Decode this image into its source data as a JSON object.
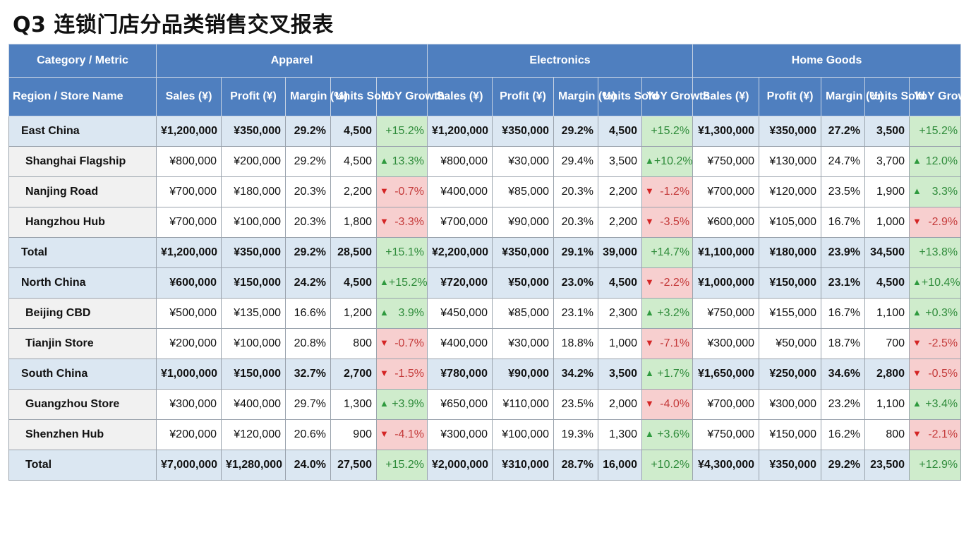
{
  "title": "Q3 连锁门店分品类销售交叉报表",
  "header": {
    "corner_top": "Category / Metric",
    "corner_bottom": "Region / Store Name",
    "categories": [
      "Apparel",
      "Electronics",
      "Home Goods"
    ],
    "metrics": [
      "Sales (¥)",
      "Profit (¥)",
      "Margin (%)",
      "Units Sold",
      "YoY Growth"
    ]
  },
  "colors": {
    "header": "#4f7fbf",
    "up": "#2e8b3a",
    "down": "#c43a3a",
    "up_bg": "#cfeccc",
    "down_bg": "#f7cfcf"
  },
  "rows": [
    {
      "label": "East China",
      "type": "region",
      "cells": [
        [
          "¥1,200,000",
          "¥350,000",
          "29.2%",
          "4,500",
          {
            "arrow": "",
            "value": "+15.2%",
            "tone": "up"
          }
        ],
        [
          "¥1,200,000",
          "¥350,000",
          "29.2%",
          "4,500",
          {
            "arrow": "",
            "value": "+15.2%",
            "tone": "up"
          }
        ],
        [
          "¥1,300,000",
          "¥350,000",
          "27.2%",
          "3,500",
          {
            "arrow": "",
            "value": "+15.2%",
            "tone": "up"
          }
        ]
      ]
    },
    {
      "label": "Shanghai Flagship",
      "type": "store",
      "cells": [
        [
          "¥800,000",
          "¥200,000",
          "29.2%",
          "4,500",
          {
            "arrow": "▲",
            "value": "13.3%",
            "tone": "up"
          }
        ],
        [
          "¥800,000",
          "¥30,000",
          "29.4%",
          "3,500",
          {
            "arrow": "▲",
            "value": "+10.2%",
            "tone": "up"
          }
        ],
        [
          "¥750,000",
          "¥130,000",
          "24.7%",
          "3,700",
          {
            "arrow": "▲",
            "value": "12.0%",
            "tone": "up"
          }
        ]
      ]
    },
    {
      "label": "Nanjing Road",
      "type": "store",
      "cells": [
        [
          "¥700,000",
          "¥180,000",
          "20.3%",
          "2,200",
          {
            "arrow": "▼",
            "value": "-0.7%",
            "tone": "down"
          }
        ],
        [
          "¥400,000",
          "¥85,000",
          "20.3%",
          "2,200",
          {
            "arrow": "▼",
            "value": "-1.2%",
            "tone": "down"
          }
        ],
        [
          "¥700,000",
          "¥120,000",
          "23.5%",
          "1,900",
          {
            "arrow": "▲",
            "value": "3.3%",
            "tone": "up"
          }
        ]
      ]
    },
    {
      "label": "Hangzhou Hub",
      "type": "store",
      "cells": [
        [
          "¥700,000",
          "¥100,000",
          "20.3%",
          "1,800",
          {
            "arrow": "▼",
            "value": "-3.3%",
            "tone": "down"
          }
        ],
        [
          "¥700,000",
          "¥90,000",
          "20.3%",
          "2,200",
          {
            "arrow": "▼",
            "value": "-3.5%",
            "tone": "down"
          }
        ],
        [
          "¥600,000",
          "¥105,000",
          "16.7%",
          "1,000",
          {
            "arrow": "▼",
            "value": "-2.9%",
            "tone": "down"
          }
        ]
      ]
    },
    {
      "label": "Total",
      "type": "total",
      "cells": [
        [
          "¥1,200,000",
          "¥350,000",
          "29.2%",
          "28,500",
          {
            "arrow": "",
            "value": "+15.1%",
            "tone": "up"
          }
        ],
        [
          "¥2,200,000",
          "¥350,000",
          "29.1%",
          "39,000",
          {
            "arrow": "",
            "value": "+14.7%",
            "tone": "up"
          }
        ],
        [
          "¥1,100,000",
          "¥180,000",
          "23.9%",
          "34,500",
          {
            "arrow": "",
            "value": "+13.8%",
            "tone": "up"
          }
        ]
      ]
    },
    {
      "label": "North China",
      "type": "region",
      "cells": [
        [
          "¥600,000",
          "¥150,000",
          "24.2%",
          "4,500",
          {
            "arrow": "▲",
            "value": "+15.2%",
            "tone": "up"
          }
        ],
        [
          "¥720,000",
          "¥50,000",
          "23.0%",
          "4,500",
          {
            "arrow": "▼",
            "value": "-2.2%",
            "tone": "down"
          }
        ],
        [
          "¥1,000,000",
          "¥150,000",
          "23.1%",
          "4,500",
          {
            "arrow": "▲",
            "value": "+10.4%",
            "tone": "up"
          }
        ]
      ]
    },
    {
      "label": "Beijing CBD",
      "type": "store",
      "cells": [
        [
          "¥500,000",
          "¥135,000",
          "16.6%",
          "1,200",
          {
            "arrow": "▲",
            "value": "3.9%",
            "tone": "up"
          }
        ],
        [
          "¥450,000",
          "¥85,000",
          "23.1%",
          "2,300",
          {
            "arrow": "▲",
            "value": "+3.2%",
            "tone": "up"
          }
        ],
        [
          "¥750,000",
          "¥155,000",
          "16.7%",
          "1,100",
          {
            "arrow": "▲",
            "value": "+0.3%",
            "tone": "up"
          }
        ]
      ]
    },
    {
      "label": "Tianjin Store",
      "type": "store",
      "cells": [
        [
          "¥200,000",
          "¥100,000",
          "20.8%",
          "800",
          {
            "arrow": "▼",
            "value": "-0.7%",
            "tone": "down"
          }
        ],
        [
          "¥400,000",
          "¥30,000",
          "18.8%",
          "1,000",
          {
            "arrow": "▼",
            "value": "-7.1%",
            "tone": "down"
          }
        ],
        [
          "¥300,000",
          "¥50,000",
          "18.7%",
          "700",
          {
            "arrow": "▼",
            "value": "-2.5%",
            "tone": "down"
          }
        ]
      ]
    },
    {
      "label": "South China",
      "type": "region",
      "cells": [
        [
          "¥1,000,000",
          "¥150,000",
          "32.7%",
          "2,700",
          {
            "arrow": "▼",
            "value": "-1.5%",
            "tone": "down"
          }
        ],
        [
          "¥780,000",
          "¥90,000",
          "34.2%",
          "3,500",
          {
            "arrow": "▲",
            "value": "+1.7%",
            "tone": "up"
          }
        ],
        [
          "¥1,650,000",
          "¥250,000",
          "34.6%",
          "2,800",
          {
            "arrow": "▼",
            "value": "-0.5%",
            "tone": "down"
          }
        ]
      ]
    },
    {
      "label": "Guangzhou Store",
      "type": "store",
      "cells": [
        [
          "¥300,000",
          "¥400,000",
          "29.7%",
          "1,300",
          {
            "arrow": "▲",
            "value": "+3.9%",
            "tone": "up"
          }
        ],
        [
          "¥650,000",
          "¥110,000",
          "23.5%",
          "2,000",
          {
            "arrow": "▼",
            "value": "-4.0%",
            "tone": "down"
          }
        ],
        [
          "¥700,000",
          "¥300,000",
          "23.2%",
          "1,100",
          {
            "arrow": "▲",
            "value": "+3.4%",
            "tone": "up"
          }
        ]
      ]
    },
    {
      "label": "Shenzhen Hub",
      "type": "store",
      "cells": [
        [
          "¥200,000",
          "¥120,000",
          "20.6%",
          "900",
          {
            "arrow": "▼",
            "value": "-4.1%",
            "tone": "down"
          }
        ],
        [
          "¥300,000",
          "¥100,000",
          "19.3%",
          "1,300",
          {
            "arrow": "▲",
            "value": "+3.6%",
            "tone": "up"
          }
        ],
        [
          "¥750,000",
          "¥150,000",
          "16.2%",
          "800",
          {
            "arrow": "▼",
            "value": "-2.1%",
            "tone": "down"
          }
        ]
      ]
    },
    {
      "label": "Total",
      "type": "total grand",
      "cells": [
        [
          "¥7,000,000",
          "¥1,280,000",
          "24.0%",
          "27,500",
          {
            "arrow": "",
            "value": "+15.2%",
            "tone": "up"
          }
        ],
        [
          "¥2,000,000",
          "¥310,000",
          "28.7%",
          "16,000",
          {
            "arrow": "",
            "value": "+10.2%",
            "tone": "up"
          }
        ],
        [
          "¥4,300,000",
          "¥350,000",
          "29.2%",
          "23,500",
          {
            "arrow": "",
            "value": "+12.9%",
            "tone": "up"
          }
        ]
      ]
    }
  ]
}
